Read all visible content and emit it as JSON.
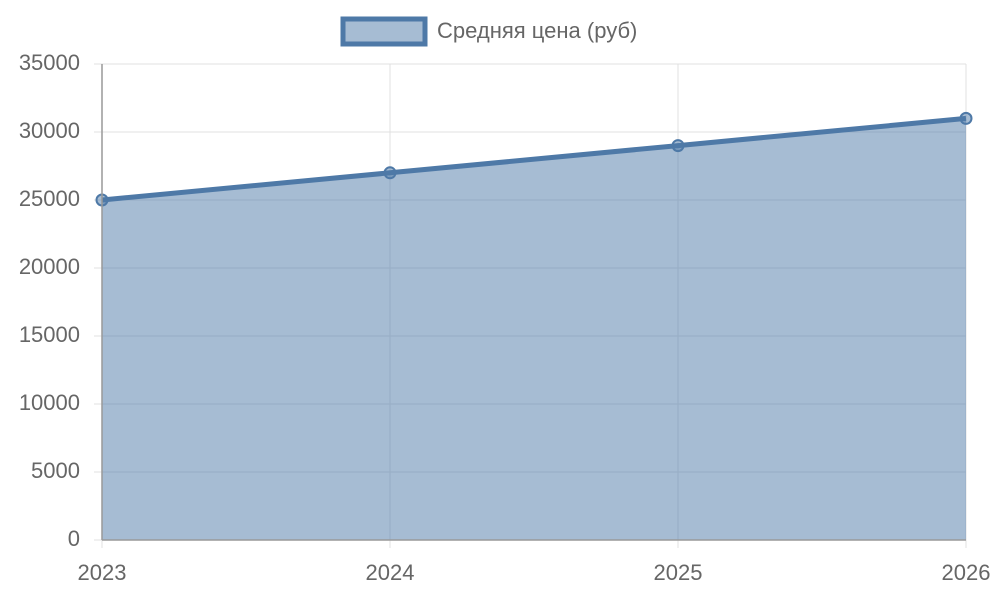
{
  "chart_data": {
    "type": "line",
    "categories": [
      "2023",
      "2024",
      "2025",
      "2026"
    ],
    "series": [
      {
        "name": "Средняя цена (руб)",
        "color": "#4e79a7",
        "values": [
          25000,
          27000,
          29000,
          31000
        ]
      }
    ],
    "fill": true,
    "ylim": [
      0,
      35000
    ],
    "yticks": [
      0,
      5000,
      10000,
      15000,
      20000,
      25000,
      30000,
      35000
    ],
    "grid": true,
    "legend": "top"
  }
}
